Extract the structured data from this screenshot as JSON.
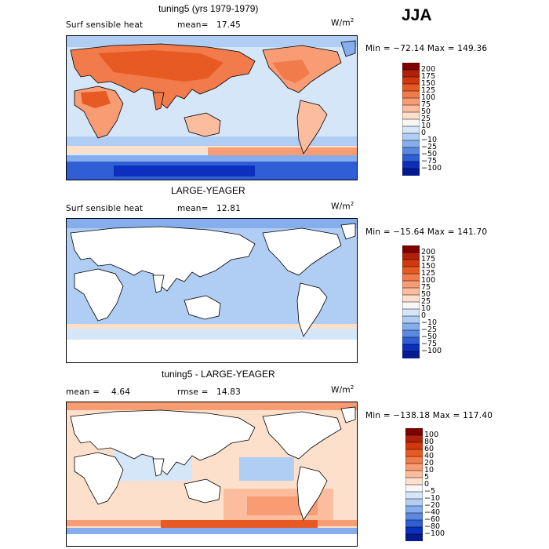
{
  "season": "JJA",
  "panels": [
    {
      "title": "tuning5 (yrs 1979-1979)",
      "left_label": "Surf sensible heat",
      "stat_label": "mean=",
      "stat_value": "17.45",
      "units": "W/m",
      "units_sup": "2",
      "minmax": "Min = −72.14 Max = 149.36",
      "levels": [
        "200",
        "175",
        "150",
        "125",
        "100",
        "75",
        "50",
        "25",
        "10",
        "0",
        "−10",
        "−25",
        "−50",
        "−75",
        "−100"
      ],
      "colors": [
        "#800000",
        "#b1200a",
        "#d2380f",
        "#e85a23",
        "#f27b4b",
        "#f89c74",
        "#fbbd9d",
        "#fde0cc",
        "#f7f7f7",
        "#d6e6f9",
        "#b0cdf4",
        "#86adec",
        "#5b89e2",
        "#2f5ed5",
        "#0d2fbd",
        "#061a8f"
      ]
    },
    {
      "title": "LARGE-YEAGER",
      "left_label": "Surf sensible heat",
      "stat_label": "mean=",
      "stat_value": "12.81",
      "units": "W/m",
      "units_sup": "2",
      "minmax": "Min = −15.64 Max = 141.70",
      "levels": [
        "200",
        "175",
        "150",
        "125",
        "100",
        "75",
        "50",
        "25",
        "10",
        "0",
        "−10",
        "−25",
        "−50",
        "−75",
        "−100"
      ],
      "colors": [
        "#800000",
        "#b1200a",
        "#d2380f",
        "#e85a23",
        "#f27b4b",
        "#f89c74",
        "#fbbd9d",
        "#fde0cc",
        "#f7f7f7",
        "#d6e6f9",
        "#b0cdf4",
        "#86adec",
        "#5b89e2",
        "#2f5ed5",
        "#0d2fbd",
        "#061a8f"
      ]
    },
    {
      "title": "tuning5 - LARGE-YEAGER",
      "left_label": "mean =",
      "left_value": "4.64",
      "stat_label": "rmse =",
      "stat_value": "14.83",
      "units": "W/m",
      "units_sup": "2",
      "minmax": "Min = −138.18 Max = 117.40",
      "levels": [
        "100",
        "80",
        "60",
        "40",
        "20",
        "10",
        "5",
        "0",
        "−5",
        "−10",
        "−20",
        "−40",
        "−60",
        "−80",
        "−100"
      ],
      "colors": [
        "#800000",
        "#b1200a",
        "#d2380f",
        "#e85a23",
        "#f27b4b",
        "#f89c74",
        "#fbbd9d",
        "#fde0cc",
        "#f7f7f7",
        "#d6e6f9",
        "#b0cdf4",
        "#86adec",
        "#5b89e2",
        "#2f5ed5",
        "#0d2fbd",
        "#061a8f"
      ]
    }
  ],
  "chart_data": [
    {
      "type": "heatmap",
      "title": "tuning5 (yrs 1979-1979)",
      "variable": "Surf sensible heat",
      "units": "W/m^2",
      "mean": 17.45,
      "min": -72.14,
      "max": 149.36,
      "contour_levels": [
        200,
        175,
        150,
        125,
        100,
        75,
        50,
        25,
        10,
        0,
        -10,
        -25,
        -50,
        -75,
        -100
      ]
    },
    {
      "type": "heatmap",
      "title": "LARGE-YEAGER",
      "variable": "Surf sensible heat",
      "units": "W/m^2",
      "mean": 12.81,
      "min": -15.64,
      "max": 141.7,
      "contour_levels": [
        200,
        175,
        150,
        125,
        100,
        75,
        50,
        25,
        10,
        0,
        -10,
        -25,
        -50,
        -75,
        -100
      ]
    },
    {
      "type": "heatmap",
      "title": "tuning5 - LARGE-YEAGER",
      "units": "W/m^2",
      "mean": 4.64,
      "rmse": 14.83,
      "min": -138.18,
      "max": 117.4,
      "contour_levels": [
        100,
        80,
        60,
        40,
        20,
        10,
        5,
        0,
        -5,
        -10,
        -20,
        -40,
        -60,
        -80,
        -100
      ]
    }
  ]
}
